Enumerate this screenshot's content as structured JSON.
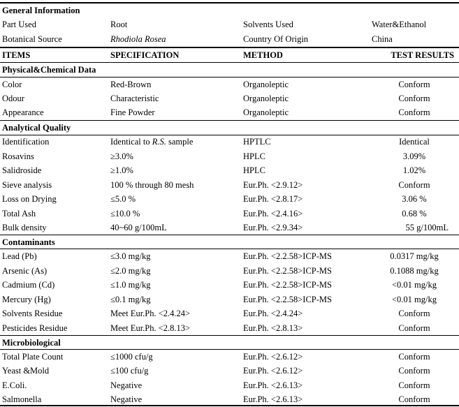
{
  "general": {
    "title": "General Information",
    "part_used_label": "Part Used",
    "part_used_value": "Root",
    "solvents_label": "Solvents Used",
    "solvents_value": "Water&Ethanol",
    "botanical_label": "Botanical Source",
    "botanical_value": "Rhodiola Rosea",
    "origin_label": "Country Of Origin",
    "origin_value": "China"
  },
  "header": {
    "items": "ITEMS",
    "specification": "SPECIFICATION",
    "method": "METHOD",
    "results": "TEST RESULTS"
  },
  "physical": {
    "title": "Physical&Chemical Data",
    "rows": [
      {
        "item": "Color",
        "spec": "Red-Brown",
        "method": "Organoleptic",
        "result": "Conform"
      },
      {
        "item": "Odour",
        "spec": "Characteristic",
        "method": "Organoleptic",
        "result": "Conform"
      },
      {
        "item": "Appearance",
        "spec": "Fine Powder",
        "method": "Organoleptic",
        "result": "Conform"
      }
    ]
  },
  "analytical": {
    "title": "Analytical Quality",
    "identification": {
      "item": "Identification",
      "spec_pre": "Identical to ",
      "spec_ital": "R.S.",
      "spec_post": " sample",
      "method": "HPTLC",
      "result": "Identical"
    },
    "rows": [
      {
        "item": "Rosavins",
        "spec": "≥3.0%",
        "method": "HPLC",
        "result": "3.09%"
      },
      {
        "item": "Salidroside",
        "spec": "≥1.0%",
        "method": "HPLC",
        "result": "1.02%"
      },
      {
        "item": "Sieve analysis",
        "spec": "100 % through 80 mesh",
        "method": "Eur.Ph. <2.9.12>",
        "result": "Conform"
      },
      {
        "item": "Loss on Drying",
        "spec": "≤5.0 %",
        "method": "Eur.Ph. <2.8.17>",
        "result": "3.06 %"
      },
      {
        "item": "Total Ash",
        "spec": "≤10.0 %",
        "method": "Eur.Ph. <2.4.16>",
        "result": "0.68 %"
      },
      {
        "item": "Bulk density",
        "spec": "40~60 g/100mL",
        "method": "Eur.Ph. <2.9.34>",
        "result": "55 g/100mL"
      }
    ]
  },
  "contaminants": {
    "title": "Contaminants",
    "rows": [
      {
        "item": "Lead (Pb)",
        "spec": "≤3.0 mg/kg",
        "method": "Eur.Ph. <2.2.58>ICP-MS",
        "result": "0.0317 mg/kg"
      },
      {
        "item": "Arsenic (As)",
        "spec": "≤2.0 mg/kg",
        "method": "Eur.Ph. <2.2.58>ICP-MS",
        "result": "0.1088 mg/kg"
      },
      {
        "item": "Cadmium (Cd)",
        "spec": "≤1.0 mg/kg",
        "method": "Eur.Ph. <2.2.58>ICP-MS",
        "result": "<0.01 mg/kg"
      },
      {
        "item": "Mercury (Hg)",
        "spec": "≤0.1 mg/kg",
        "method": "Eur.Ph. <2.2.58>ICP-MS",
        "result": "<0.01 mg/kg"
      },
      {
        "item": "Solvents Residue",
        "spec": "Meet Eur.Ph. <2.4.24>",
        "method": "Eur.Ph. <2.4.24>",
        "result": "Conform"
      },
      {
        "item": "Pesticides Residue",
        "spec": "Meet Eur.Ph. <2.8.13>",
        "method": "Eur.Ph. <2.8.13>",
        "result": "Conform"
      }
    ]
  },
  "micro": {
    "title": "Microbiological",
    "rows": [
      {
        "item": "Total Plate Count",
        "spec": "≤1000 cfu/g",
        "method": "Eur.Ph. <2.6.12>",
        "result": "Conform"
      },
      {
        "item": "Yeast &Mold",
        "spec": "≤100 cfu/g",
        "method": "Eur.Ph. <2.6.12>",
        "result": "Conform"
      },
      {
        "item": "E.Coli.",
        "spec": "Negative",
        "method": "Eur.Ph. <2.6.13>",
        "result": "Conform"
      },
      {
        "item": "Salmonella",
        "spec": "Negative",
        "method": "Eur.Ph. <2.6.13>",
        "result": "Conform"
      }
    ]
  }
}
